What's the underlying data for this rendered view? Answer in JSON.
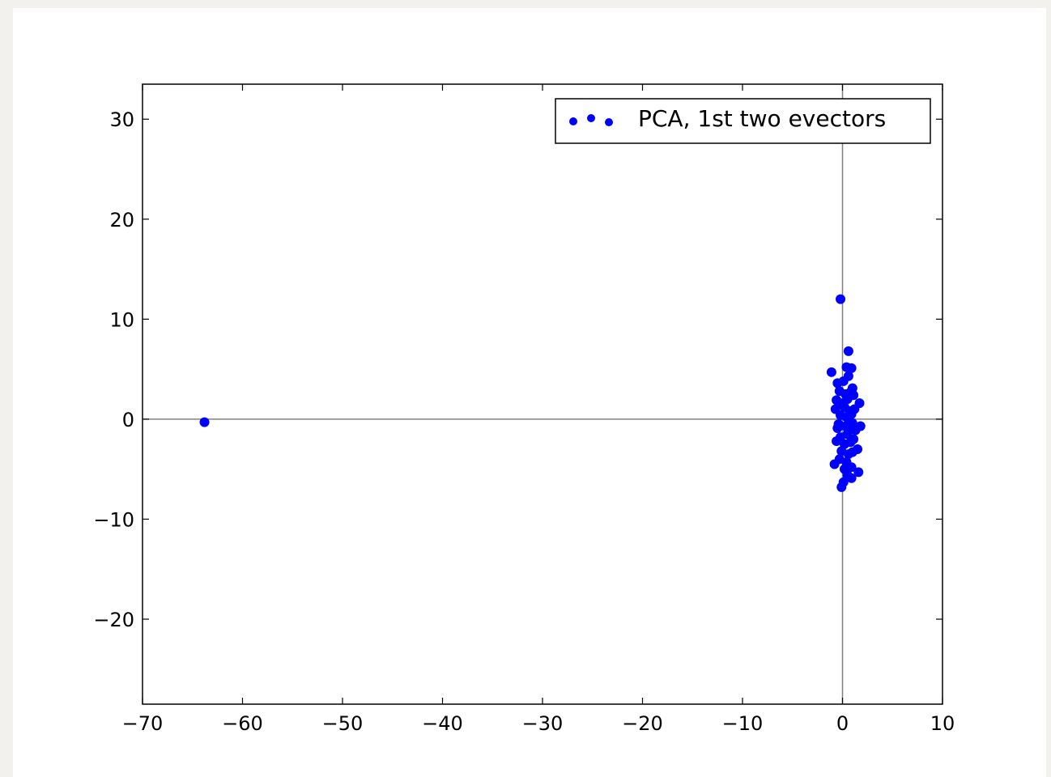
{
  "chart_data": {
    "type": "scatter",
    "title": "",
    "xlabel": "",
    "ylabel": "",
    "xlim": [
      -70,
      10
    ],
    "ylim": [
      -28.5,
      33.5
    ],
    "x_ticks": [
      -70,
      -60,
      -50,
      -40,
      -30,
      -20,
      -10,
      0,
      10
    ],
    "y_ticks": [
      -20,
      -10,
      0,
      10,
      20,
      30
    ],
    "x_tick_labels": [
      "−70",
      "−60",
      "−50",
      "−40",
      "−30",
      "−20",
      "−10",
      "0",
      "10"
    ],
    "y_tick_labels": [
      "−20",
      "−10",
      "0",
      "10",
      "20",
      "30"
    ],
    "grid": false,
    "zero_lines": true,
    "legend": {
      "placement": "top-right",
      "entries": [
        "PCA, 1st two evectors"
      ]
    },
    "series": [
      {
        "name": "PCA, 1st two evectors",
        "color": "#0000ff",
        "marker": "circle",
        "points": [
          [
            -63.8,
            -0.3
          ],
          [
            -0.2,
            12.0
          ],
          [
            0.6,
            6.8
          ],
          [
            -1.1,
            4.7
          ],
          [
            0.4,
            5.2
          ],
          [
            0.9,
            5.1
          ],
          [
            -0.5,
            3.6
          ],
          [
            0.1,
            3.8
          ],
          [
            0.6,
            4.3
          ],
          [
            1.0,
            3.1
          ],
          [
            -0.3,
            2.8
          ],
          [
            0.3,
            2.5
          ],
          [
            0.8,
            2.7
          ],
          [
            1.1,
            2.4
          ],
          [
            -0.6,
            1.9
          ],
          [
            0.0,
            1.6
          ],
          [
            0.5,
            2.0
          ],
          [
            1.7,
            1.6
          ],
          [
            -0.7,
            1.0
          ],
          [
            0.2,
            1.2
          ],
          [
            0.7,
            0.8
          ],
          [
            1.2,
            1.0
          ],
          [
            -0.2,
            0.4
          ],
          [
            0.4,
            0.2
          ],
          [
            0.9,
            0.5
          ],
          [
            -0.4,
            -0.5
          ],
          [
            0.3,
            -0.7
          ],
          [
            1.0,
            -0.4
          ],
          [
            1.8,
            -0.7
          ],
          [
            -0.5,
            -0.9
          ],
          [
            0.6,
            -1.2
          ],
          [
            1.3,
            -1.1
          ],
          [
            -0.2,
            -1.8
          ],
          [
            0.5,
            -1.5
          ],
          [
            1.1,
            -2.0
          ],
          [
            -0.6,
            -2.2
          ],
          [
            0.2,
            -2.5
          ],
          [
            0.8,
            -2.3
          ],
          [
            1.5,
            -3.0
          ],
          [
            -0.1,
            -3.2
          ],
          [
            0.6,
            -3.5
          ],
          [
            1.0,
            -3.3
          ],
          [
            -0.3,
            -4.0
          ],
          [
            0.4,
            -4.3
          ],
          [
            -0.8,
            -4.5
          ],
          [
            0.9,
            -4.8
          ],
          [
            0.2,
            -5.0
          ],
          [
            1.6,
            -5.3
          ],
          [
            0.5,
            -5.6
          ],
          [
            0.9,
            -5.9
          ],
          [
            0.1,
            -6.3
          ],
          [
            -0.1,
            -6.8
          ]
        ]
      }
    ]
  }
}
